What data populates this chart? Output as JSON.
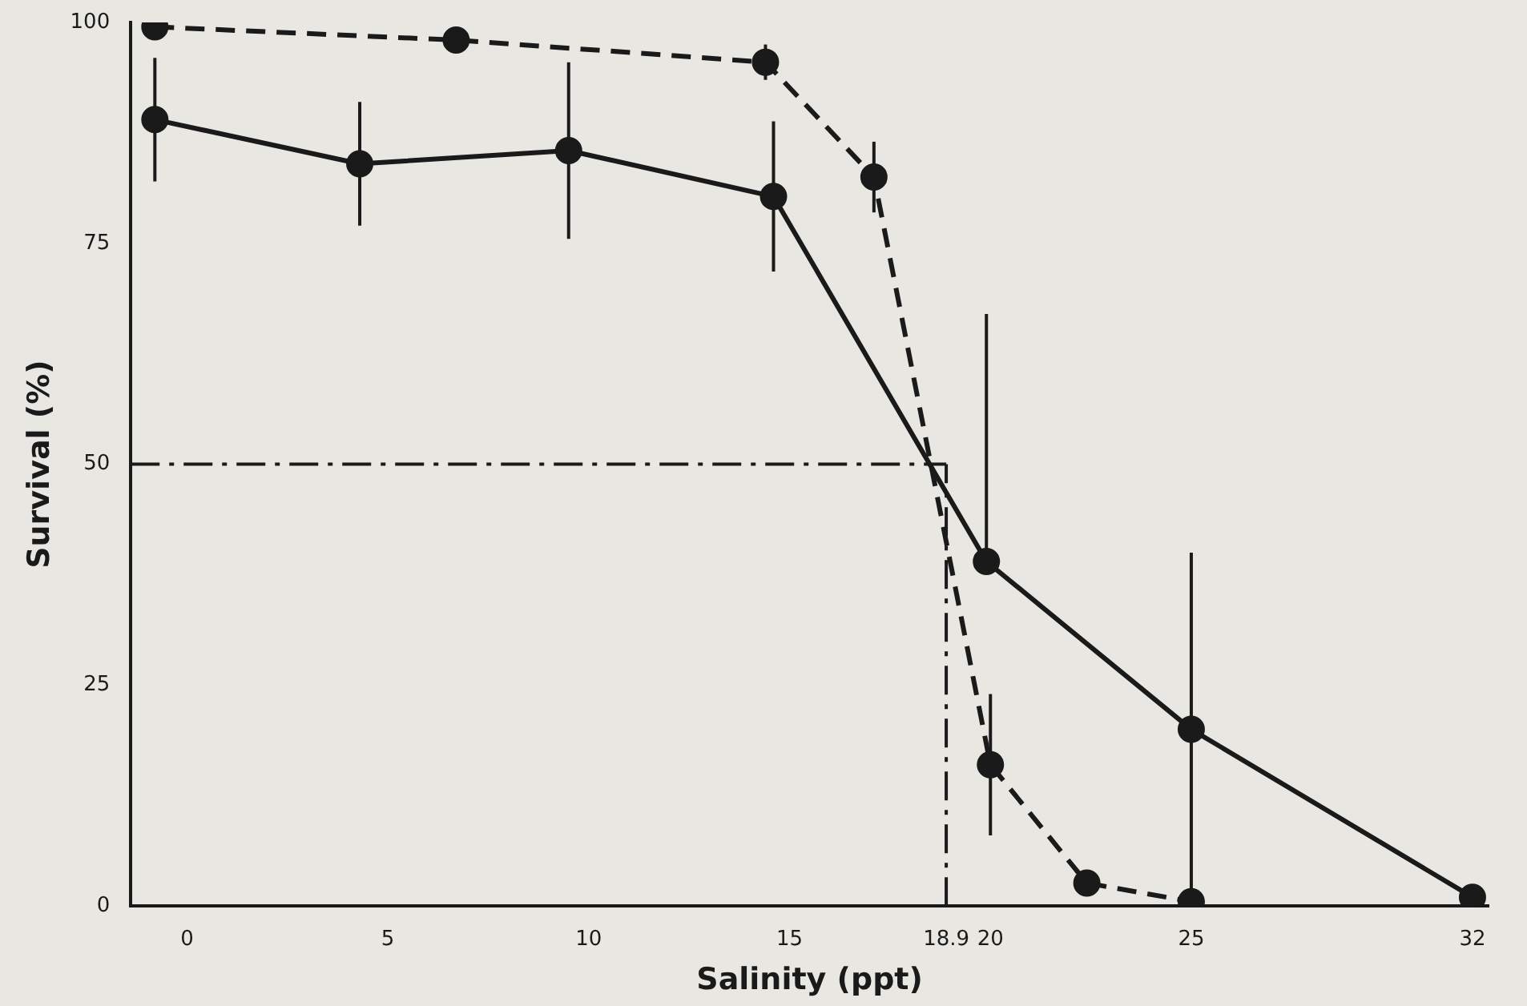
{
  "chart_data": {
    "type": "line",
    "xlabel": "Salinity (ppt)",
    "ylabel": "Survival (%)",
    "xlim": [
      -1.4,
      32.4
    ],
    "xticks": [
      0,
      5,
      10,
      15,
      18.9,
      20,
      25,
      32
    ],
    "ylim": [
      0,
      100
    ],
    "yticks": [
      0,
      25,
      50,
      75,
      100
    ],
    "grid": false,
    "legend": false,
    "marker": "circle",
    "series": [
      {
        "color": "#1a1a1a",
        "line_style": "solid",
        "x": [
          -0.8,
          4.3,
          9.5,
          14.6,
          19.9,
          25,
          32
        ],
        "values": [
          89,
          84,
          85.5,
          80.3,
          39,
          20,
          1
        ],
        "errors": [
          7,
          7,
          10,
          8.5,
          [
            39,
            67
          ],
          20,
          null
        ]
      },
      {
        "color": "#1a1a1a",
        "line_style": "dashed",
        "x": [
          -0.8,
          6.7,
          14.4,
          17.1,
          20,
          22.4,
          25
        ],
        "values": [
          99.5,
          98,
          95.5,
          82.5,
          16,
          2.6,
          0.5
        ],
        "errors": [
          null,
          null,
          2,
          4,
          8,
          null,
          null
        ]
      }
    ],
    "ref_lines": [
      {
        "axis": "y",
        "value": 50,
        "line_style": "dashed"
      },
      {
        "axis": "x",
        "value": 18.9,
        "line_style": "dashed"
      }
    ]
  }
}
